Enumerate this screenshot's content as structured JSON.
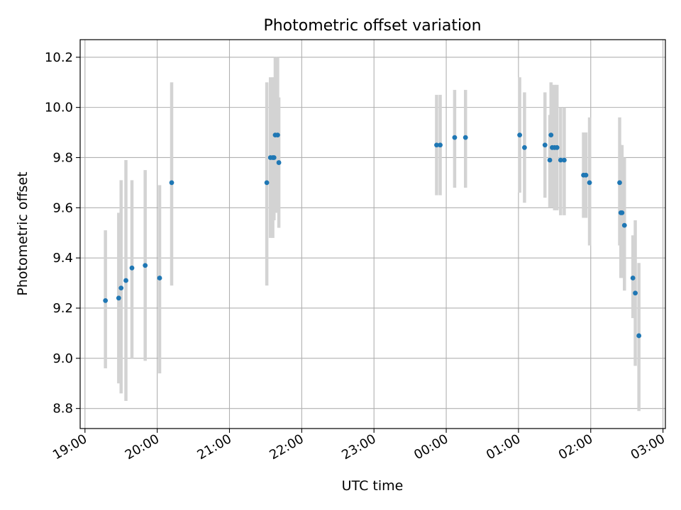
{
  "chart_data": {
    "type": "scatter",
    "title": "Photometric offset variation",
    "xlabel": "UTC time",
    "ylabel": "Photometric offset",
    "xlim": [
      "18:56",
      "03:02"
    ],
    "ylim": [
      8.72,
      10.27
    ],
    "x_ticks": [
      "19:00",
      "20:00",
      "21:00",
      "22:00",
      "23:00",
      "00:00",
      "01:00",
      "02:00",
      "03:00"
    ],
    "y_ticks": [
      "8.8",
      "9.0",
      "9.2",
      "9.4",
      "9.6",
      "9.8",
      "10.0",
      "10.2"
    ],
    "grid": true,
    "colors": {
      "points": "#1f77b4",
      "error_bars": "#d3d3d3",
      "grid": "#b0b0b0"
    },
    "series": [
      {
        "points": [
          {
            "t": "19:17",
            "y": 9.23,
            "lo": 8.96,
            "hi": 9.51
          },
          {
            "t": "19:28",
            "y": 9.24,
            "lo": 8.9,
            "hi": 9.58
          },
          {
            "t": "19:30",
            "y": 9.28,
            "lo": 8.86,
            "hi": 9.71
          },
          {
            "t": "19:34",
            "y": 9.31,
            "lo": 8.83,
            "hi": 9.79
          },
          {
            "t": "19:39",
            "y": 9.36,
            "lo": 9.0,
            "hi": 9.71
          },
          {
            "t": "19:50",
            "y": 9.37,
            "lo": 8.99,
            "hi": 9.75
          },
          {
            "t": "20:02",
            "y": 9.32,
            "lo": 8.94,
            "hi": 9.69
          },
          {
            "t": "20:12",
            "y": 9.7,
            "lo": 9.29,
            "hi": 10.1
          },
          {
            "t": "21:31",
            "y": 9.7,
            "lo": 9.29,
            "hi": 10.1
          },
          {
            "t": "21:34",
            "y": 9.8,
            "lo": 9.48,
            "hi": 10.12
          },
          {
            "t": "21:36",
            "y": 9.8,
            "lo": 9.48,
            "hi": 10.12
          },
          {
            "t": "21:37",
            "y": 9.8,
            "lo": 9.55,
            "hi": 10.12
          },
          {
            "t": "21:38",
            "y": 9.89,
            "lo": 9.58,
            "hi": 10.2
          },
          {
            "t": "21:40",
            "y": 9.89,
            "lo": 9.58,
            "hi": 10.2
          },
          {
            "t": "21:41",
            "y": 9.78,
            "lo": 9.52,
            "hi": 10.04
          },
          {
            "t": "23:52",
            "y": 9.85,
            "lo": 9.65,
            "hi": 10.05
          },
          {
            "t": "23:55",
            "y": 9.85,
            "lo": 9.65,
            "hi": 10.05
          },
          {
            "t": "00:07",
            "y": 9.88,
            "lo": 9.68,
            "hi": 10.07
          },
          {
            "t": "00:16",
            "y": 9.88,
            "lo": 9.68,
            "hi": 10.07
          },
          {
            "t": "01:01",
            "y": 9.89,
            "lo": 9.66,
            "hi": 10.12
          },
          {
            "t": "01:05",
            "y": 9.84,
            "lo": 9.62,
            "hi": 10.06
          },
          {
            "t": "01:22",
            "y": 9.85,
            "lo": 9.64,
            "hi": 10.06
          },
          {
            "t": "01:26",
            "y": 9.79,
            "lo": 9.6,
            "hi": 9.97
          },
          {
            "t": "01:27",
            "y": 9.89,
            "lo": 9.69,
            "hi": 10.1
          },
          {
            "t": "01:28",
            "y": 9.84,
            "lo": 9.6,
            "hi": 10.09
          },
          {
            "t": "01:30",
            "y": 9.84,
            "lo": 9.59,
            "hi": 10.09
          },
          {
            "t": "01:32",
            "y": 9.84,
            "lo": 9.59,
            "hi": 10.09
          },
          {
            "t": "01:35",
            "y": 9.79,
            "lo": 9.57,
            "hi": 10.0
          },
          {
            "t": "01:38",
            "y": 9.79,
            "lo": 9.57,
            "hi": 10.0
          },
          {
            "t": "01:54",
            "y": 9.73,
            "lo": 9.56,
            "hi": 9.9
          },
          {
            "t": "01:56",
            "y": 9.73,
            "lo": 9.56,
            "hi": 9.9
          },
          {
            "t": "01:59",
            "y": 9.7,
            "lo": 9.45,
            "hi": 9.96
          },
          {
            "t": "02:24",
            "y": 9.7,
            "lo": 9.45,
            "hi": 9.96
          },
          {
            "t": "02:25",
            "y": 9.58,
            "lo": 9.32,
            "hi": 9.85
          },
          {
            "t": "02:26",
            "y": 9.58,
            "lo": 9.32,
            "hi": 9.85
          },
          {
            "t": "02:28",
            "y": 9.53,
            "lo": 9.27,
            "hi": 9.8
          },
          {
            "t": "02:35",
            "y": 9.32,
            "lo": 9.16,
            "hi": 9.49
          },
          {
            "t": "02:37",
            "y": 9.26,
            "lo": 8.97,
            "hi": 9.55
          },
          {
            "t": "02:40",
            "y": 9.09,
            "lo": 8.79,
            "hi": 9.38
          }
        ]
      }
    ]
  }
}
